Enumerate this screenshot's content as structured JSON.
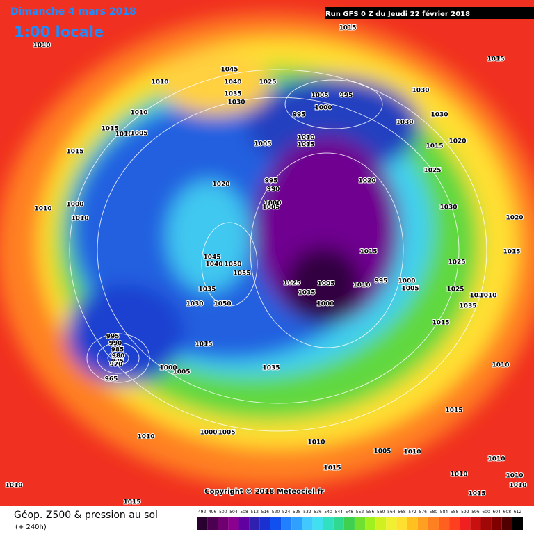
{
  "header": {
    "date": "Dimanche 4 mars 2018",
    "time": "1:00 locale",
    "run": "Run GFS 0 Z du Jeudi 22 février 2018"
  },
  "map": {
    "pressure_labels": [
      1015,
      1010,
      1015,
      1045,
      1010,
      1040,
      1025,
      1005,
      995,
      1030,
      1035,
      1030,
      1000,
      995,
      1010,
      1030,
      1030,
      1015,
      1010,
      1005,
      1010,
      1005,
      1015,
      1020,
      1015,
      1015,
      1025,
      995,
      1020,
      1020,
      990,
      1000,
      1005,
      1000,
      1010,
      1030,
      1010,
      1020,
      1015,
      1015,
      1045,
      1040,
      1050,
      1025,
      1055,
      995,
      1000,
      1025,
      1005,
      1010,
      1005,
      1035,
      1025,
      1030,
      1035,
      1010,
      1035,
      1030,
      1050,
      1000,
      1015,
      995,
      1015,
      990,
      985,
      980,
      975,
      970,
      1035,
      1000,
      1005,
      1010,
      965,
      1015,
      1010,
      1000,
      1005,
      1010,
      1005,
      1010,
      1010,
      1015,
      1010,
      1010,
      1010,
      1010,
      1015,
      1015
    ],
    "copyright": "Copyright © 2018 Meteociel.fr"
  },
  "footer": {
    "title": "Géop. Z500 & pression au sol",
    "subtitle": "(+ 240h)"
  },
  "legend": {
    "ticks": [
      492,
      496,
      500,
      504,
      508,
      512,
      516,
      520,
      524,
      528,
      532,
      536,
      540,
      544,
      548,
      552,
      556,
      560,
      564,
      568,
      572,
      576,
      580,
      584,
      588,
      592,
      596,
      600,
      604,
      608,
      612
    ],
    "colors": [
      "#2a0030",
      "#4b0050",
      "#700070",
      "#8c0090",
      "#6000a0",
      "#3020b0",
      "#1a30d0",
      "#1050f0",
      "#2080ff",
      "#30a0ff",
      "#40c8ff",
      "#40e0f0",
      "#30e0c0",
      "#30d890",
      "#40d050",
      "#70e030",
      "#a0f020",
      "#d0f020",
      "#f0f030",
      "#ffe030",
      "#ffc020",
      "#ffa020",
      "#ff8020",
      "#ff6020",
      "#ff4020",
      "#f02020",
      "#c81010",
      "#a00808",
      "#800000",
      "#500000",
      "#000000"
    ]
  }
}
